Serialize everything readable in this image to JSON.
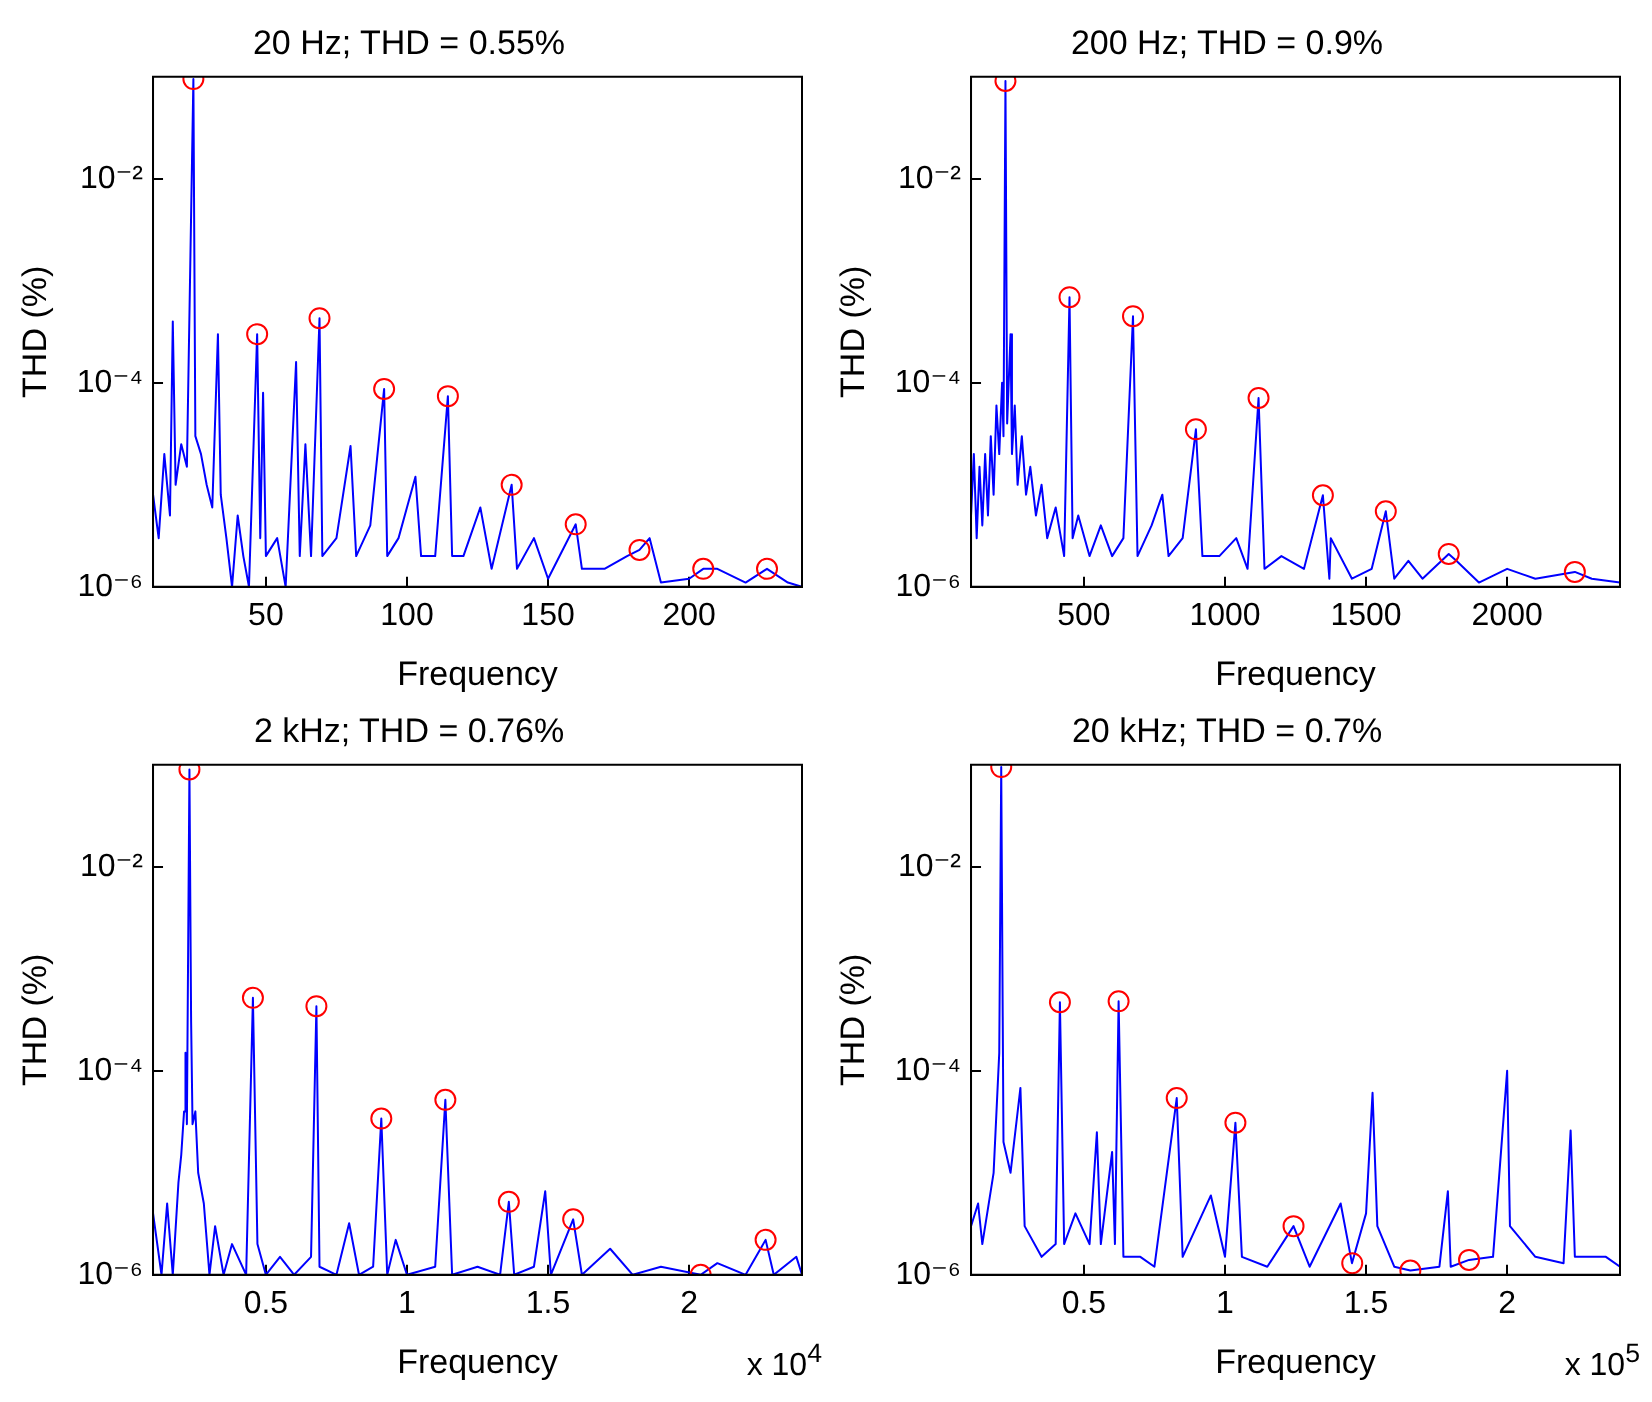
{
  "chart_data": [
    {
      "type": "line",
      "title": "20 Hz; THD = 0.55%",
      "xlabel": "Frequency",
      "ylabel": "THD (%)",
      "log": true,
      "xlim": [
        10,
        240
      ],
      "xticks": [
        50,
        100,
        150,
        200
      ],
      "ylim": [
        1e-06,
        0.1
      ],
      "yticks": [
        {
          "value": 1e-06,
          "label": "10⁻⁶"
        },
        {
          "value": 0.0001,
          "label": "10⁻⁴"
        },
        {
          "value": 0.01,
          "label": "10⁻²"
        }
      ],
      "series": [
        {
          "type": "line",
          "color": "#0000ff",
          "marker": "none",
          "x": [
            10,
            12,
            14,
            16,
            17,
            18,
            20,
            22,
            24.3,
            25,
            27,
            29,
            31,
            33,
            34,
            36,
            38,
            40,
            42,
            44,
            46.9,
            48,
            49,
            50,
            54,
            57,
            60.7,
            62,
            64,
            66,
            69,
            70,
            75,
            80,
            82,
            87,
            91.9,
            93,
            97,
            103,
            105,
            110,
            114.5,
            116,
            120,
            126,
            130,
            137.1,
            139,
            145,
            150,
            159.8,
            162,
            170,
            178,
            182.4,
            186,
            190,
            200,
            205,
            210,
            220,
            227.6,
            235,
            240
          ],
          "values": [
            8e-06,
            3e-06,
            2e-05,
            5e-06,
            0.0004,
            1e-05,
            2.5e-05,
            1.5e-05,
            0.095,
            3e-05,
            2e-05,
            1e-05,
            6e-06,
            0.0003,
            8e-06,
            3e-06,
            1e-06,
            5e-06,
            2e-06,
            1e-06,
            0.0003,
            3e-06,
            8e-05,
            2e-06,
            3e-06,
            1e-06,
            0.00016,
            2e-06,
            2.5e-05,
            2e-06,
            0.00043,
            2e-06,
            3e-06,
            2.4e-05,
            2e-06,
            4e-06,
            8.7e-05,
            2e-06,
            3e-06,
            1.2e-05,
            2e-06,
            2e-06,
            7.4e-05,
            2e-06,
            2e-06,
            6e-06,
            1.5e-06,
            1e-05,
            1.5e-06,
            3e-06,
            1.2e-06,
            4.1e-06,
            1.5e-06,
            1.5e-06,
            2e-06,
            2.3e-06,
            3e-06,
            1.1e-06,
            1.2e-06,
            1.5e-06,
            1.5e-06,
            1.1e-06,
            1.5e-06,
            1.1e-06,
            1e-06
          ]
        },
        {
          "type": "scatter",
          "color": "#ff0000",
          "marker": "circle",
          "x": [
            24.3,
            46.9,
            69,
            91.9,
            114.5,
            137.1,
            159.8,
            182.4,
            205,
            227.6
          ],
          "values": [
            0.095,
            0.0003,
            0.00043,
            8.7e-05,
            7.4e-05,
            1e-05,
            4.1e-06,
            2.3e-06,
            1.5e-06,
            1.5e-06
          ]
        }
      ]
    },
    {
      "type": "line",
      "title": "200 Hz; THD = 0.9%",
      "xlabel": "Frequency",
      "ylabel": "THD (%)",
      "log": true,
      "xlim": [
        100,
        2400
      ],
      "xticks": [
        500,
        1000,
        1500,
        2000
      ],
      "ylim": [
        1e-06,
        0.1
      ],
      "yticks": [
        {
          "value": 1e-06,
          "label": "10⁻⁶"
        },
        {
          "value": 0.0001,
          "label": "10⁻⁴"
        },
        {
          "value": 0.01,
          "label": "10⁻²"
        }
      ],
      "series": [
        {
          "type": "line",
          "color": "#0000ff",
          "marker": "none",
          "x": [
            100,
            110,
            120,
            130,
            140,
            150,
            160,
            170,
            180,
            190,
            200,
            210,
            215,
            222,
            228,
            240,
            245,
            255,
            265,
            280,
            295,
            310,
            330,
            350,
            370,
            400,
            430,
            449,
            460,
            480,
            520,
            560,
            600,
            640,
            674,
            690,
            740,
            778,
            800,
            850,
            897,
            920,
            980,
            1040,
            1080,
            1119,
            1140,
            1200,
            1280,
            1347,
            1370,
            1375,
            1450,
            1520,
            1570,
            1600,
            1650,
            1700,
            1793,
            1820,
            1900,
            2000,
            2100,
            2240,
            2300,
            2400
          ],
          "values": [
            5e-06,
            2e-05,
            3e-06,
            1.5e-05,
            4e-06,
            2e-05,
            5e-06,
            3e-05,
            8e-06,
            6e-05,
            2e-05,
            0.0001,
            3e-05,
            0.091,
            4e-05,
            0.0003,
            2e-05,
            6e-05,
            1e-05,
            3e-05,
            8e-06,
            1.5e-05,
            5e-06,
            1e-05,
            3e-06,
            6e-06,
            2e-06,
            0.00069,
            3e-06,
            5e-06,
            2e-06,
            4e-06,
            2e-06,
            3e-06,
            0.00045,
            2e-06,
            4e-06,
            8e-06,
            2e-06,
            3e-06,
            3.5e-05,
            2e-06,
            2e-06,
            3e-06,
            1.5e-06,
            7.1e-05,
            1.5e-06,
            2e-06,
            1.5e-06,
            7.9e-06,
            1.2e-06,
            3e-06,
            1.2e-06,
            1.5e-06,
            5.5e-06,
            1.2e-06,
            1.8e-06,
            1.2e-06,
            2.1e-06,
            1.8e-06,
            1.1e-06,
            1.5e-06,
            1.2e-06,
            1.4e-06,
            1.2e-06,
            1.1e-06
          ]
        },
        {
          "type": "scatter",
          "color": "#ff0000",
          "marker": "circle",
          "x": [
            222,
            449,
            674,
            897,
            1119,
            1347,
            1570,
            1793,
            2240
          ],
          "values": [
            0.091,
            0.00069,
            0.00045,
            3.5e-05,
            7.1e-05,
            7.9e-06,
            5.5e-06,
            2.1e-06,
            1.4e-06
          ]
        }
      ]
    },
    {
      "type": "line",
      "title": "2 kHz; THD = 0.76%",
      "xlabel": "Frequency",
      "ylabel": "THD (%)",
      "annotations": [
        "x 10$^{4}$"
      ],
      "log": true,
      "xlim": [
        0.1,
        2.4
      ],
      "xticks": [
        0.5,
        1,
        1.5,
        2
      ],
      "ylim": [
        1e-06,
        0.1
      ],
      "yticks": [
        {
          "value": 1e-06,
          "label": "10⁻⁶"
        },
        {
          "value": 0.0001,
          "label": "10⁻⁴"
        },
        {
          "value": 0.01,
          "label": "10⁻²"
        }
      ],
      "series": [
        {
          "type": "line",
          "color": "#0000ff",
          "marker": "none",
          "x": [
            0.1,
            0.13,
            0.15,
            0.17,
            0.19,
            0.2,
            0.21,
            0.215,
            0.22,
            0.229,
            0.235,
            0.24,
            0.25,
            0.26,
            0.28,
            0.3,
            0.32,
            0.35,
            0.38,
            0.43,
            0.454,
            0.47,
            0.5,
            0.55,
            0.6,
            0.66,
            0.679,
            0.69,
            0.75,
            0.795,
            0.83,
            0.88,
            0.909,
            0.93,
            0.96,
            1.0,
            1.1,
            1.136,
            1.16,
            1.25,
            1.33,
            1.361,
            1.38,
            1.45,
            1.49,
            1.51,
            1.589,
            1.62,
            1.72,
            1.8,
            1.9,
            2.041,
            2.1,
            2.2,
            2.271,
            2.3,
            2.38,
            2.4
          ],
          "values": [
            4e-06,
            1e-06,
            5e-06,
            1e-06,
            8e-06,
            1.5e-05,
            4e-05,
            0.00015,
            3e-05,
            0.09,
            0.0003,
            3e-05,
            4e-05,
            1e-05,
            5e-06,
            1e-06,
            3e-06,
            1e-06,
            2e-06,
            1e-06,
            0.00052,
            2e-06,
            1e-06,
            1.5e-06,
            1e-06,
            1.5e-06,
            0.00043,
            1.2e-06,
            1e-06,
            3.2e-06,
            1e-06,
            1.2e-06,
            3.4e-05,
            1e-06,
            2.2e-06,
            1e-06,
            1.2e-06,
            5.2e-05,
            1e-06,
            1.2e-06,
            1e-06,
            5.2e-06,
            1e-06,
            1.2e-06,
            6.6e-06,
            1e-06,
            3.5e-06,
            1e-06,
            1.8e-06,
            1e-06,
            1.2e-06,
            1e-06,
            1.3e-06,
            1e-06,
            2.2e-06,
            1e-06,
            1.5e-06,
            1e-06
          ]
        },
        {
          "type": "scatter",
          "color": "#ff0000",
          "marker": "circle",
          "x": [
            0.229,
            0.454,
            0.679,
            0.909,
            1.136,
            1.361,
            1.589,
            2.041,
            2.271
          ],
          "values": [
            0.09,
            0.00052,
            0.00043,
            3.4e-05,
            5.2e-05,
            5.2e-06,
            3.5e-06,
            1e-06,
            2.2e-06
          ]
        }
      ]
    },
    {
      "type": "line",
      "title": "20 kHz; THD = 0.7%",
      "xlabel": "Frequency",
      "ylabel": "THD (%)",
      "annotations": [
        "x 10$^{5}$"
      ],
      "log": true,
      "xlim": [
        0.1,
        2.4
      ],
      "xticks": [
        0.5,
        1,
        1.5,
        2
      ],
      "ylim": [
        1e-06,
        0.1
      ],
      "yticks": [
        {
          "value": 1e-06,
          "label": "10⁻⁶"
        },
        {
          "value": 0.0001,
          "label": "10⁻⁴"
        },
        {
          "value": 0.01,
          "label": "10⁻²"
        }
      ],
      "series": [
        {
          "type": "line",
          "color": "#0000ff",
          "marker": "none",
          "x": [
            0.1,
            0.125,
            0.14,
            0.18,
            0.2,
            0.207,
            0.215,
            0.24,
            0.275,
            0.29,
            0.35,
            0.4,
            0.415,
            0.43,
            0.47,
            0.52,
            0.546,
            0.56,
            0.6,
            0.61,
            0.623,
            0.64,
            0.7,
            0.75,
            0.829,
            0.85,
            0.95,
            1.0,
            1.037,
            1.06,
            1.15,
            1.243,
            1.3,
            1.41,
            1.45,
            1.5,
            1.523,
            1.54,
            1.6,
            1.657,
            1.76,
            1.79,
            1.8,
            1.865,
            1.95,
            2.0,
            2.01,
            2.1,
            2.2,
            2.225,
            2.24,
            2.35,
            2.4
          ],
          "values": [
            3e-06,
            5e-06,
            2e-06,
            1e-05,
            0.00015,
            0.095,
            2e-05,
            1e-05,
            6.8e-05,
            3e-06,
            1.5e-06,
            2e-06,
            0.00047,
            2e-06,
            4e-06,
            2e-06,
            2.5e-05,
            2e-06,
            1.6e-05,
            2e-06,
            0.00048,
            1.5e-06,
            1.5e-06,
            1.2e-06,
            5.4e-05,
            1.5e-06,
            6e-06,
            1.5e-06,
            3.1e-05,
            1.5e-06,
            1.2e-06,
            3e-06,
            1.2e-06,
            5e-06,
            1.3e-06,
            4e-06,
            6.1e-05,
            3e-06,
            1.2e-06,
            1.1e-06,
            1.2e-06,
            6.6e-06,
            1.2e-06,
            1.4e-06,
            1.5e-06,
            0.0001,
            3e-06,
            1.5e-06,
            1.3e-06,
            2.6e-05,
            1.5e-06,
            1.5e-06,
            1.2e-06
          ]
        },
        {
          "type": "scatter",
          "color": "#ff0000",
          "marker": "circle",
          "x": [
            0.207,
            0.415,
            0.623,
            0.829,
            1.037,
            1.243,
            1.451,
            1.657,
            1.865
          ],
          "values": [
            0.095,
            0.00047,
            0.00048,
            5.4e-05,
            3.1e-05,
            3e-06,
            1.3e-06,
            1.1e-06,
            1.4e-06
          ]
        }
      ]
    }
  ]
}
